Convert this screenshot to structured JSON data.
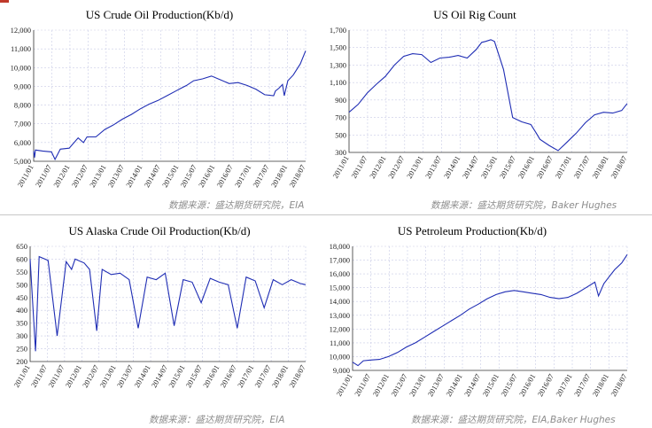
{
  "sources": {
    "top_left": "数据来源：盛达期货研究院，EIA",
    "top_right": "数据来源：盛达期货研究院，Baker Hughes",
    "bottom_left": "数据来源：盛达期货研究院，EIA",
    "bottom_right": "数据来源：盛达期货研究院，EIA,Baker Hughes"
  },
  "colors": {
    "series": "#1f2db4",
    "grid": "#c9cce6"
  },
  "chart_data": [
    {
      "type": "line",
      "title": "US Crude Oil Production(Kb/d)",
      "ylim": [
        5000,
        12000
      ],
      "y_ticks": [
        "5,000",
        "6,000",
        "7,000",
        "8,000",
        "9,000",
        "10,000",
        "11,000",
        "12,000"
      ],
      "x_ticks": [
        "2011/01",
        "2011/07",
        "2012/01",
        "2012/07",
        "2013/01",
        "2013/07",
        "2014/01",
        "2014/07",
        "2015/01",
        "2015/07",
        "2016/01",
        "2016/07",
        "2017/01",
        "2017/07",
        "2018/01",
        "2018/07"
      ],
      "grid": true,
      "series": [
        {
          "x": [
            0,
            0.05,
            0.1,
            0.5,
            1,
            1.2,
            1.5,
            2,
            2.5,
            2.8,
            3,
            3.5,
            4,
            4.5,
            5,
            5.5,
            6,
            6.5,
            7,
            7.5,
            8,
            8.3,
            8.6,
            9,
            9.5,
            10,
            10.5,
            11,
            11.5,
            12,
            12.5,
            13,
            13.5,
            13.6,
            13.8,
            14,
            14.1,
            14.3,
            14.6,
            15,
            15.3
          ],
          "values": [
            5550,
            5200,
            5600,
            5550,
            5500,
            5100,
            5650,
            5700,
            6250,
            6000,
            6300,
            6300,
            6700,
            6950,
            7250,
            7500,
            7800,
            8050,
            8250,
            8500,
            8750,
            8900,
            9050,
            9300,
            9400,
            9550,
            9350,
            9150,
            9200,
            9050,
            8850,
            8550,
            8500,
            8750,
            8900,
            9100,
            8500,
            9300,
            9600,
            10200,
            10900
          ]
        }
      ]
    },
    {
      "type": "line",
      "title": "US Oil Rig Count",
      "ylim": [
        300,
        1700
      ],
      "y_ticks": [
        "300",
        "500",
        "700",
        "900",
        "1,100",
        "1,300",
        "1,500",
        "1,700"
      ],
      "x_ticks": [
        "2011/01",
        "2011/07",
        "2012/01",
        "2012/07",
        "2013/01",
        "2013/07",
        "2014/01",
        "2014/07",
        "2015/01",
        "2015/07",
        "2016/01",
        "2016/07",
        "2017/01",
        "2017/07",
        "2018/01",
        "2018/07"
      ],
      "grid": true,
      "series": [
        {
          "x": [
            0,
            0.5,
            1,
            1.5,
            2,
            2.5,
            3,
            3.5,
            4,
            4.5,
            5,
            5.5,
            6,
            6.5,
            7,
            7.3,
            7.5,
            7.8,
            8,
            8.5,
            9,
            9.5,
            10,
            10.3,
            10.5,
            11,
            11.5,
            12,
            12.5,
            13,
            13.5,
            14,
            14.5,
            15,
            15.3
          ],
          "values": [
            760,
            850,
            980,
            1080,
            1170,
            1300,
            1400,
            1430,
            1420,
            1330,
            1380,
            1390,
            1410,
            1380,
            1480,
            1560,
            1570,
            1590,
            1570,
            1250,
            700,
            650,
            620,
            520,
            450,
            380,
            320,
            420,
            520,
            640,
            730,
            760,
            750,
            780,
            860
          ]
        }
      ]
    },
    {
      "type": "line",
      "title": "US Alaska Crude Oil Production(Kb/d)",
      "ylim": [
        200,
        650
      ],
      "y_ticks": [
        "200",
        "250",
        "300",
        "350",
        "400",
        "450",
        "500",
        "550",
        "600",
        "650"
      ],
      "x_ticks": [
        "2011/01",
        "2011/07",
        "2011/07",
        "2012/01",
        "2012/07",
        "2013/01",
        "2013/07",
        "2014/01",
        "2014/07",
        "2015/01",
        "2015/07",
        "2016/01",
        "2016/07",
        "2017/01",
        "2017/07",
        "2018/01",
        "2018/07"
      ],
      "grid": true,
      "series": [
        {
          "x": [
            0,
            0.3,
            0.5,
            1,
            1.5,
            2,
            2.3,
            2.5,
            3,
            3.3,
            3.7,
            4,
            4.5,
            5,
            5.5,
            6,
            6.5,
            7,
            7.5,
            8,
            8.5,
            9,
            9.5,
            10,
            10.5,
            11,
            11.5,
            12,
            12.5,
            13,
            13.5,
            14,
            14.5,
            15,
            15.3
          ],
          "values": [
            600,
            240,
            610,
            595,
            300,
            590,
            560,
            600,
            585,
            560,
            320,
            560,
            540,
            545,
            520,
            330,
            530,
            520,
            545,
            340,
            520,
            510,
            430,
            525,
            510,
            500,
            330,
            530,
            515,
            410,
            520,
            500,
            520,
            505,
            500
          ]
        }
      ]
    },
    {
      "type": "line",
      "title": "US Petroleum Production(Kb/d)",
      "ylim": [
        9000,
        18000
      ],
      "y_ticks": [
        "9,000",
        "10,000",
        "11,000",
        "12,000",
        "13,000",
        "14,000",
        "15,000",
        "16,000",
        "17,000",
        "18,000"
      ],
      "x_ticks": [
        "2011/01",
        "2011/07",
        "2012/01",
        "2012/07",
        "2013/01",
        "2013/07",
        "2014/01",
        "2014/07",
        "2015/01",
        "2015/07",
        "2016/01",
        "2016/07",
        "2017/01",
        "2017/07",
        "2018/01",
        "2018/07"
      ],
      "grid": true,
      "series": [
        {
          "x": [
            0,
            0.3,
            0.6,
            1,
            1.5,
            2,
            2.5,
            3,
            3.5,
            4,
            4.5,
            5,
            5.5,
            6,
            6.5,
            7,
            7.5,
            8,
            8.5,
            9,
            9.5,
            10,
            10.5,
            11,
            11.5,
            12,
            12.5,
            13,
            13.5,
            13.7,
            14,
            14.3,
            14.6,
            15,
            15.3
          ],
          "values": [
            9600,
            9350,
            9700,
            9750,
            9800,
            10000,
            10300,
            10700,
            11000,
            11400,
            11800,
            12200,
            12600,
            13000,
            13450,
            13800,
            14200,
            14500,
            14700,
            14800,
            14700,
            14600,
            14500,
            14300,
            14200,
            14300,
            14600,
            15000,
            15400,
            14400,
            15300,
            15800,
            16300,
            16800,
            17400
          ]
        }
      ]
    }
  ]
}
